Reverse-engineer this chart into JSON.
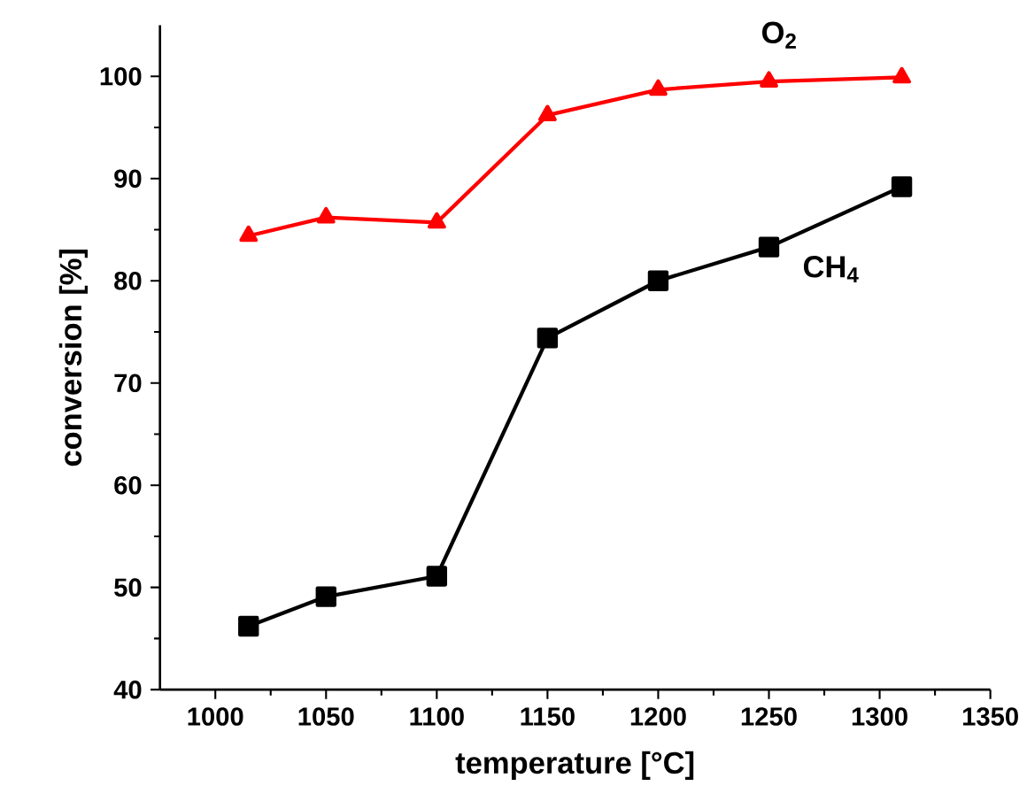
{
  "chart_data": {
    "type": "line",
    "xlabel": "temperature [°C]",
    "ylabel": "conversion [%]",
    "xlim": [
      975,
      1350
    ],
    "xticks": [
      1000,
      1050,
      1100,
      1150,
      1200,
      1250,
      1300,
      1350
    ],
    "ylim": [
      40,
      105
    ],
    "yticks": [
      40,
      50,
      60,
      70,
      80,
      90,
      100
    ],
    "grid": false,
    "legend": false,
    "line_style": "solid",
    "series": [
      {
        "name": "O$_{2}$",
        "color": "#ff0000",
        "marker": "triangle",
        "x": [
          1015,
          1050,
          1100,
          1150,
          1200,
          1250,
          1310
        ],
        "values": [
          84.4,
          86.2,
          85.7,
          96.2,
          98.7,
          99.5,
          99.9
        ]
      },
      {
        "name": "CH$_{4}$",
        "color": "#000000",
        "marker": "square",
        "x": [
          1015,
          1050,
          1100,
          1150,
          1200,
          1250,
          1310
        ],
        "values": [
          46.2,
          49.1,
          51.1,
          74.4,
          80.0,
          83.3,
          89.2
        ]
      }
    ]
  }
}
